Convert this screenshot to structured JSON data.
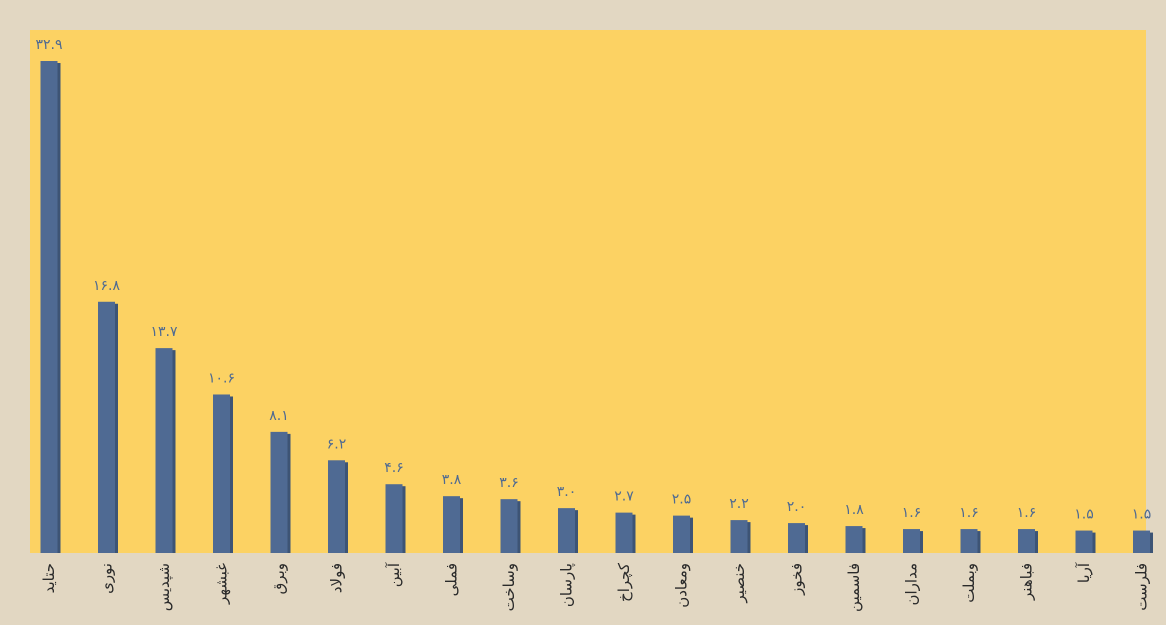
{
  "chart_data": {
    "type": "bar",
    "categories": [
      "حتاید",
      "نوری",
      "شپدیس",
      "غبشهر",
      "وبرق",
      "فولاد",
      "آبین",
      "فملی",
      "وساخت",
      "پارسان",
      "کچراخ",
      "ومعادن",
      "خنصیر",
      "فخوز",
      "فاسمین",
      "مداران",
      "وبملت",
      "فباهنر",
      "آریا",
      "فلرست"
    ],
    "values": [
      32.9,
      16.8,
      13.7,
      10.6,
      8.1,
      6.2,
      4.6,
      3.8,
      3.6,
      3.0,
      2.7,
      2.5,
      2.2,
      2.0,
      1.8,
      1.6,
      1.6,
      1.6,
      1.5,
      1.5
    ],
    "value_labels": [
      "۳۲.۹",
      "۱۶.۸",
      "۱۳.۷",
      "۱۰.۶",
      "۸.۱",
      "۶.۲",
      "۴.۶",
      "۳.۸",
      "۳.۶",
      "۳.۰",
      "۲.۷",
      "۲.۵",
      "۲.۲",
      "۲.۰",
      "۱.۸",
      "۱.۶",
      "۱.۶",
      "۱.۶",
      "۱.۵",
      "۱.۵"
    ],
    "title": "",
    "xlabel": "",
    "ylabel": "",
    "ylim": [
      0,
      32.9
    ],
    "grid": false,
    "colors": {
      "bar": "#4f6a93",
      "plot_bg": "#fcd263",
      "page_bg": "#e2d7c2"
    }
  }
}
